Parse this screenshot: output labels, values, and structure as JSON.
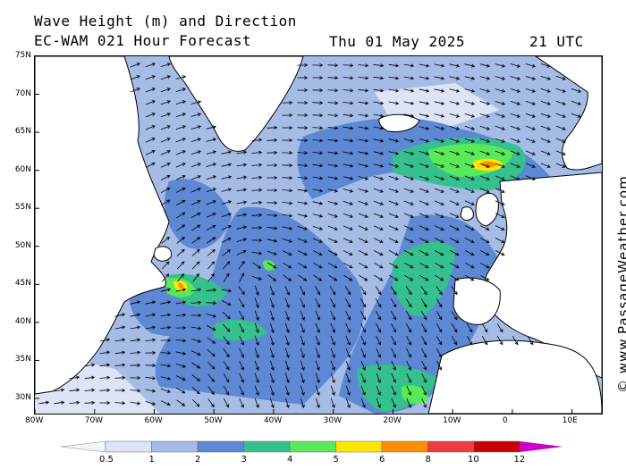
{
  "header": {
    "title": "Wave Height (m) and Direction",
    "model_line": "EC-WAM 021 Hour Forecast",
    "date": "Thu 01 May 2025",
    "time": "21 UTC"
  },
  "credit": "© www.PassageWeather.com",
  "map": {
    "lat_labels": [
      "75N",
      "70N",
      "65N",
      "60N",
      "55N",
      "50N",
      "45N",
      "40N",
      "35N",
      "30N"
    ],
    "lat_values": [
      75,
      70,
      65,
      60,
      55,
      50,
      45,
      40,
      35,
      30
    ],
    "lon_labels": [
      "80W",
      "70W",
      "60W",
      "50W",
      "40W",
      "30W",
      "20W",
      "10W",
      "0",
      "10E"
    ],
    "lon_values": [
      -80,
      -70,
      -60,
      -50,
      -40,
      -30,
      -20,
      -10,
      0,
      10
    ],
    "lon_range": [
      -80,
      15
    ],
    "lat_range": [
      28,
      75
    ],
    "land_color": "#ffffff",
    "coast_color": "#000000",
    "arrow_color": "#000000"
  },
  "legend": {
    "labels": [
      "0.5",
      "1",
      "2",
      "3",
      "4",
      "5",
      "6",
      "8",
      "10",
      "12"
    ],
    "colors": [
      "#dde4f5",
      "#a5bce6",
      "#5c88d4",
      "#36c08e",
      "#58ea58",
      "#ffe600",
      "#ff8f00",
      "#f03c3c",
      "#c80000",
      "#c800c8"
    ],
    "first_color": "#f4f6fc"
  }
}
